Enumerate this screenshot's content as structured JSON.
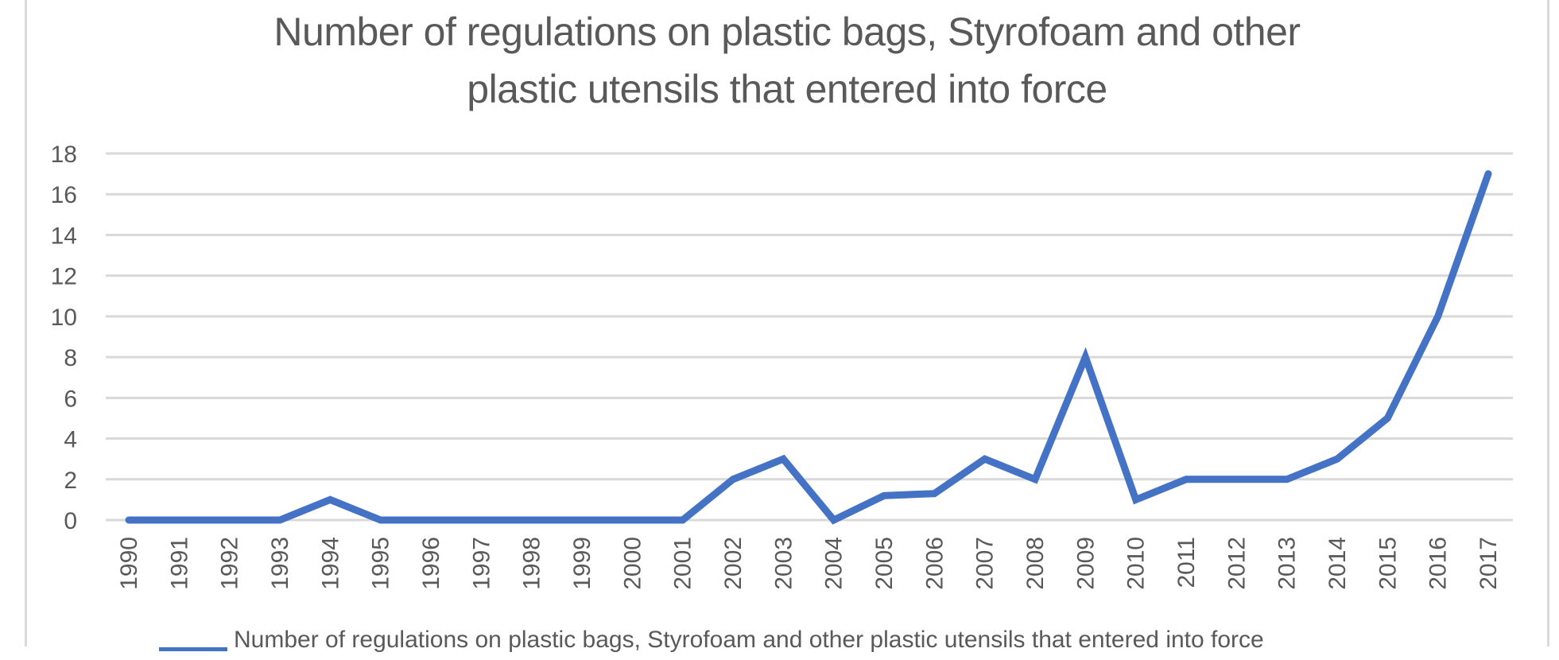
{
  "chart_data": {
    "type": "line",
    "title": "Number of regulations on plastic bags, Styrofoam and other plastic utensils that entered into force",
    "title_lines": [
      "Number of regulations on plastic bags, Styrofoam and other",
      "plastic utensils that entered into force"
    ],
    "xlabel": "",
    "ylabel": "",
    "ylim": [
      0,
      18
    ],
    "yticks": [
      0,
      2,
      4,
      6,
      8,
      10,
      12,
      14,
      16,
      18
    ],
    "grid": true,
    "legend_position": "bottom",
    "categories": [
      "1990",
      "1991",
      "1992",
      "1993",
      "1994",
      "1995",
      "1996",
      "1997",
      "1998",
      "1999",
      "2000",
      "2001",
      "2002",
      "2003",
      "2004",
      "2005",
      "2006",
      "2007",
      "2008",
      "2009",
      "2010",
      "2011",
      "2012",
      "2013",
      "2014",
      "2015",
      "2016",
      "2017"
    ],
    "series": [
      {
        "name": "Number of regulations on plastic bags, Styrofoam and other plastic utensils that entered into force",
        "color": "#4472c4",
        "values": [
          0,
          0,
          0,
          0,
          1,
          0,
          0,
          0,
          0,
          0,
          0,
          0,
          2,
          3,
          0,
          1.2,
          1.3,
          3,
          2,
          8,
          1,
          2,
          2,
          2,
          3,
          5,
          10,
          17
        ]
      }
    ]
  },
  "colors": {
    "series": "#4472c4",
    "grid": "#d9d9d9",
    "text": "#595959"
  },
  "legend": {
    "label": "Number of regulations on plastic bags, Styrofoam and other plastic utensils that entered into force"
  }
}
